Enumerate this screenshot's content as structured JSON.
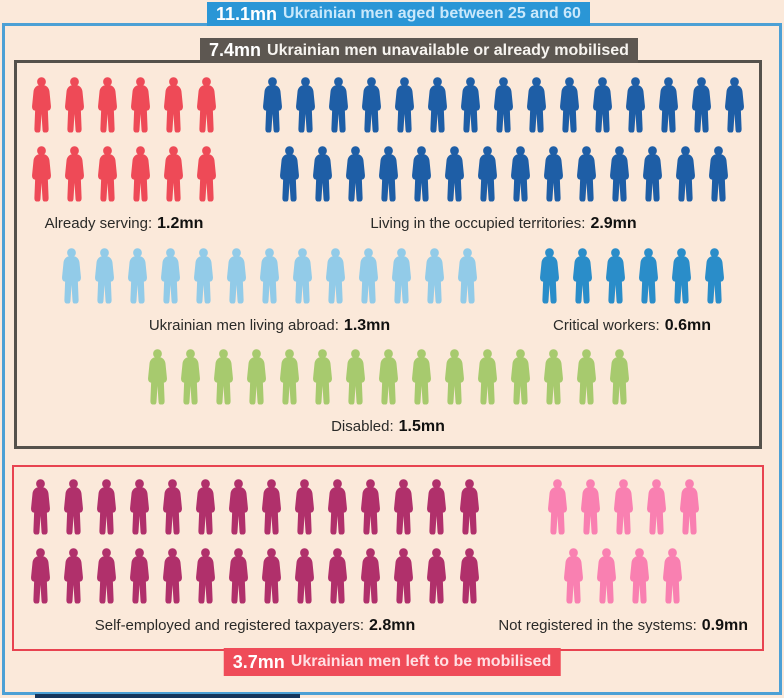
{
  "colors": {
    "page_background": "#fbe9da",
    "outer_frame": "#4ca0d5",
    "top_banner_bg": "#2a96d6",
    "gray_banner_bg": "#5d5751",
    "gray_box_border": "#55514b",
    "red_box_border": "#e84350",
    "red_banner_bg": "#ef4c59",
    "label_text": "#2a2a28"
  },
  "header_banner": {
    "value": "11.1mn",
    "label": "Ukrainian men aged between 25 and 60"
  },
  "gray_banner": {
    "value": "7.4mn",
    "label": "Ukrainian men unavailable or already mobilised"
  },
  "bottom_banner": {
    "value": "3.7mn",
    "label": "Ukrainian men left to be mobilised"
  },
  "groups": [
    {
      "id": "already-serving",
      "label": "Already serving:",
      "value": "1.2mn",
      "color": "#ee4a57",
      "rows": [
        6,
        6
      ]
    },
    {
      "id": "occupied-territories",
      "label": "Living in the occupied territories:",
      "value": "2.9mn",
      "color": "#1e5ea6",
      "rows": [
        15,
        14
      ]
    },
    {
      "id": "living-abroad",
      "label": "Ukrainian men living abroad:",
      "value": "1.3mn",
      "color": "#92cbe8",
      "rows": [
        13
      ]
    },
    {
      "id": "critical-workers",
      "label": "Critical workers:",
      "value": "0.6mn",
      "color": "#2a8dc9",
      "rows": [
        6
      ]
    },
    {
      "id": "disabled",
      "label": "Disabled:",
      "value": "1.5mn",
      "color": "#a7ca6e",
      "rows": [
        15
      ]
    },
    {
      "id": "self-employed",
      "label": "Self-employed and registered taxpayers:",
      "value": "2.8mn",
      "color": "#b0306b",
      "rows": [
        14,
        14
      ]
    },
    {
      "id": "not-registered",
      "label": "Not registered in the systems:",
      "value": "0.9mn",
      "color": "#f980b1",
      "rows": [
        5,
        4
      ]
    }
  ],
  "chart_data": {
    "type": "pictogram",
    "title": "11.1mn Ukrainian men aged between 25 and 60",
    "total_mn": 11.1,
    "unit_per_icon_mn": 0.1,
    "sections": [
      {
        "label": "7.4mn Ukrainian men unavailable or already mobilised",
        "total_mn": 7.4,
        "categories": [
          "Already serving",
          "Living in the occupied territories",
          "Ukrainian men living abroad",
          "Critical workers",
          "Disabled"
        ],
        "values_mn": [
          1.2,
          2.9,
          1.3,
          0.6,
          1.5
        ],
        "icon_counts": [
          12,
          29,
          13,
          6,
          15
        ],
        "icon_colors": [
          "#ee4a57",
          "#1e5ea6",
          "#92cbe8",
          "#2a8dc9",
          "#a7ca6e"
        ]
      },
      {
        "label": "3.7mn Ukrainian men left to be mobilised",
        "total_mn": 3.7,
        "categories": [
          "Self-employed and registered taxpayers",
          "Not registered in the systems"
        ],
        "values_mn": [
          2.8,
          0.9
        ],
        "icon_counts": [
          28,
          9
        ],
        "icon_colors": [
          "#b0306b",
          "#f980b1"
        ]
      }
    ]
  }
}
